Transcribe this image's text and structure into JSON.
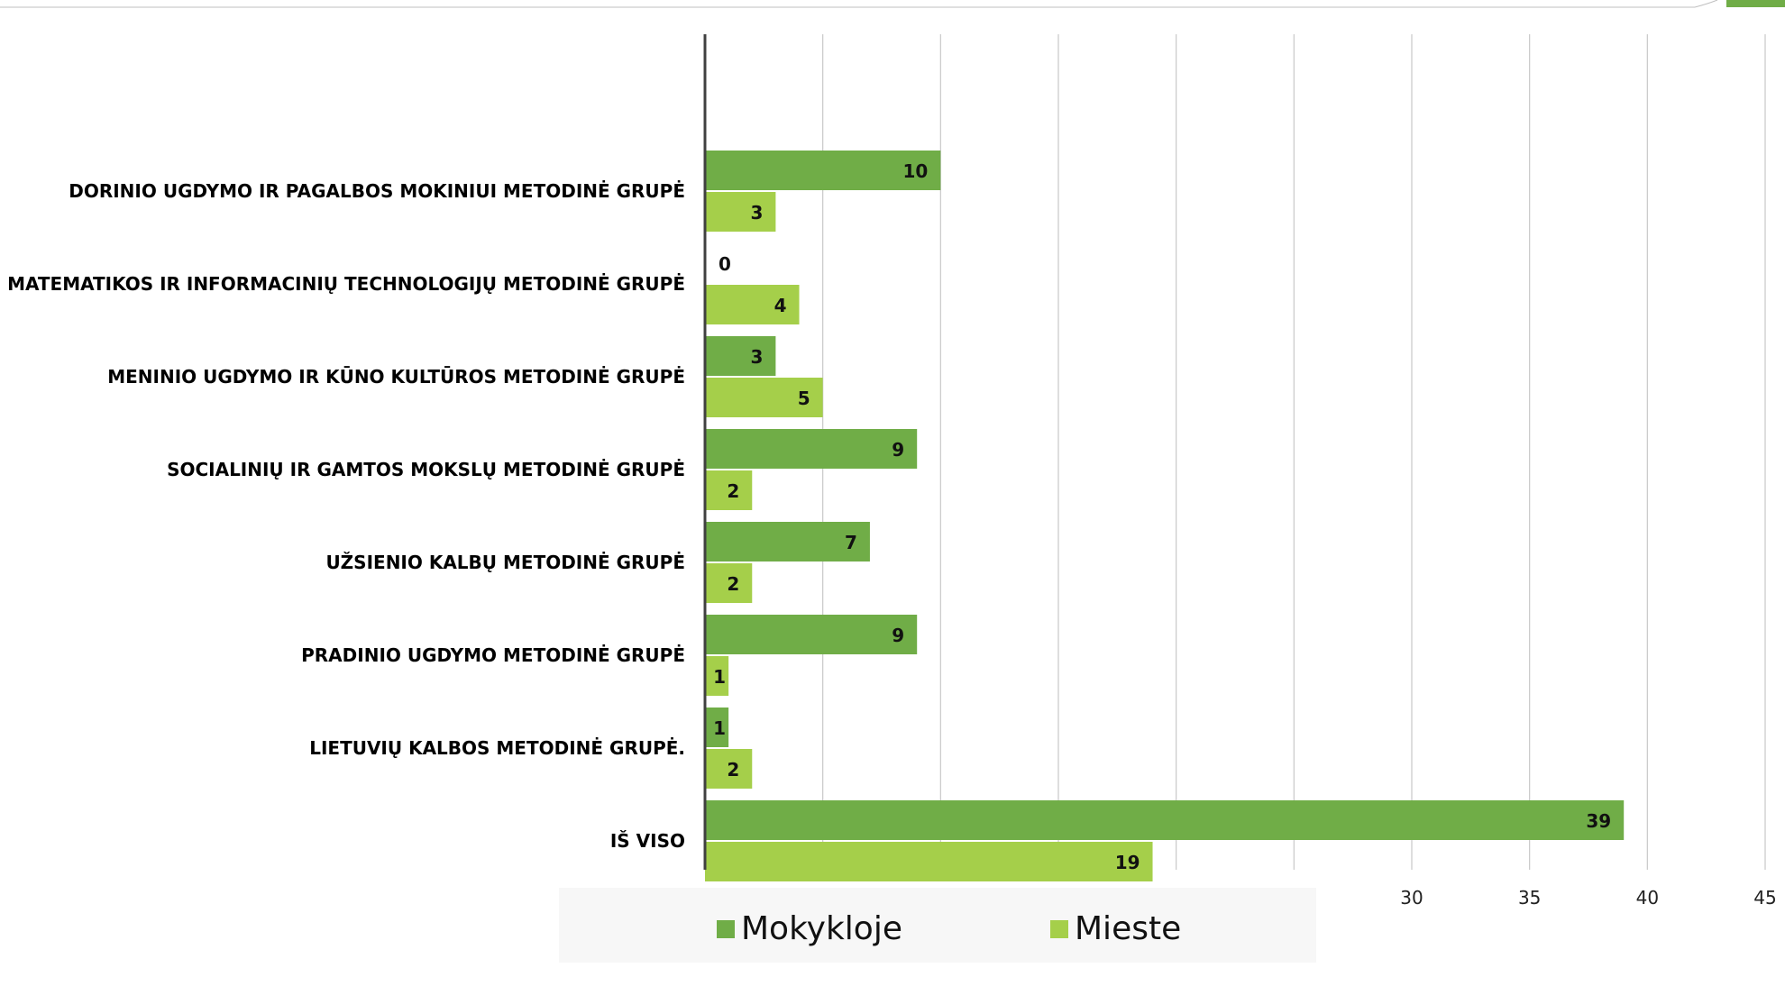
{
  "chart_data": {
    "type": "bar",
    "orientation": "horizontal",
    "categories": [
      "DORINIO UGDYMO IR PAGALBOS MOKINIUI METODINĖ GRUPĖ",
      "MATEMATIKOS IR INFORMACINIŲ TECHNOLOGIJŲ METODINĖ GRUPĖ",
      "MENINIO UGDYMO IR KŪNO KULTŪROS METODINĖ GRUPĖ",
      "SOCIALINIŲ IR GAMTOS MOKSLŲ METODINĖ GRUPĖ",
      "UŽSIENIO KALBŲ METODINĖ GRUPĖ",
      "PRADINIO  UGDYMO METODINĖ GRUPĖ",
      "LIETUVIŲ KALBOS METODINĖ GRUPĖ.",
      "IŠ VISO"
    ],
    "series": [
      {
        "name": "Mokykloje",
        "color": "#70ad47",
        "values": [
          10,
          0,
          3,
          9,
          7,
          9,
          1,
          39
        ]
      },
      {
        "name": "Mieste",
        "color": "#a5cf4a",
        "values": [
          3,
          4,
          5,
          2,
          2,
          1,
          2,
          19
        ]
      }
    ],
    "x_ticks": [
      0,
      5,
      10,
      15,
      20,
      25,
      30,
      35,
      40,
      45
    ],
    "xlim": [
      0,
      45
    ],
    "grid": true,
    "data_labels": true,
    "legend_position": "bottom"
  }
}
